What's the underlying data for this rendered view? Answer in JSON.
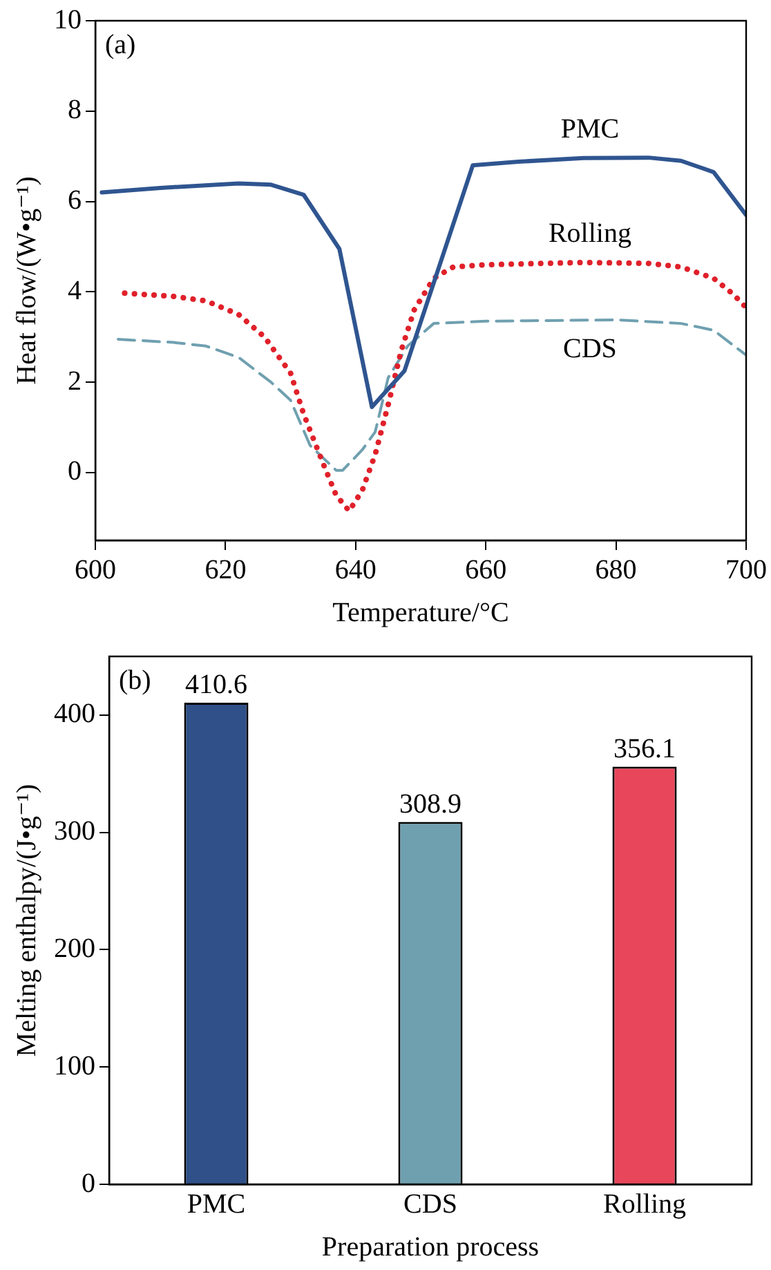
{
  "chart_data": [
    {
      "type": "line",
      "xlabel": "Temperature/°C",
      "ylabel": "Heat flow/(W•g⁻¹)",
      "annotations": [
        "(a)"
      ],
      "xlim": [
        600,
        700
      ],
      "xticks": [
        600,
        620,
        640,
        660,
        680,
        700
      ],
      "ylim": [
        -1.5,
        10
      ],
      "yticks": [
        0,
        2,
        4,
        6,
        8,
        10
      ],
      "grid": false,
      "legend": false,
      "marker": "none",
      "series": [
        {
          "name": "PMC",
          "color": "#2f5590",
          "line_style": "solid",
          "x": [
            601,
            610,
            622,
            627,
            632,
            637.5,
            642.5,
            647.5,
            658,
            665,
            675,
            685,
            690,
            695,
            700
          ],
          "values": [
            6.2,
            6.3,
            6.4,
            6.37,
            6.15,
            4.95,
            1.45,
            2.25,
            6.8,
            6.88,
            6.96,
            6.97,
            6.9,
            6.65,
            5.7
          ]
        },
        {
          "name": "Rolling",
          "color": "#e0202a",
          "line_style": "dotted",
          "x": [
            604.5,
            612,
            617,
            622,
            626,
            630,
            632,
            635,
            637,
            639,
            641,
            643,
            645,
            647,
            649,
            652,
            655,
            660,
            675,
            685,
            690,
            695,
            698,
            700
          ],
          "values": [
            3.97,
            3.9,
            3.8,
            3.5,
            3.0,
            2.2,
            1.3,
            0.2,
            -0.5,
            -0.85,
            -0.4,
            0.4,
            1.5,
            2.7,
            3.6,
            4.3,
            4.55,
            4.6,
            4.65,
            4.63,
            4.55,
            4.3,
            3.95,
            3.65
          ]
        },
        {
          "name": "CDS",
          "color": "#6fa0b0",
          "line_style": "dashed",
          "x": [
            603.5,
            612,
            617,
            622,
            627,
            630,
            633,
            637,
            638,
            641,
            643,
            645,
            648,
            652,
            660,
            680,
            690,
            695,
            700
          ],
          "values": [
            2.95,
            2.88,
            2.8,
            2.55,
            2.0,
            1.6,
            0.6,
            0.05,
            0.05,
            0.5,
            0.9,
            2.1,
            2.8,
            3.3,
            3.35,
            3.38,
            3.3,
            3.15,
            2.6
          ]
        }
      ]
    },
    {
      "type": "bar",
      "xlabel": "Preparation process",
      "ylabel": "Melting enthalpy/(J•g⁻¹)",
      "annotations": [
        "(b)"
      ],
      "categories": [
        "PMC",
        "CDS",
        "Rolling"
      ],
      "values": [
        410.6,
        308.9,
        356.1
      ],
      "colors": [
        "#2f5088",
        "#6fa0b0",
        "#e8465a"
      ],
      "ylim": [
        0,
        450
      ],
      "yticks": [
        0,
        100,
        200,
        300,
        400
      ],
      "grid": false,
      "legend": false,
      "data_labels": true
    }
  ]
}
